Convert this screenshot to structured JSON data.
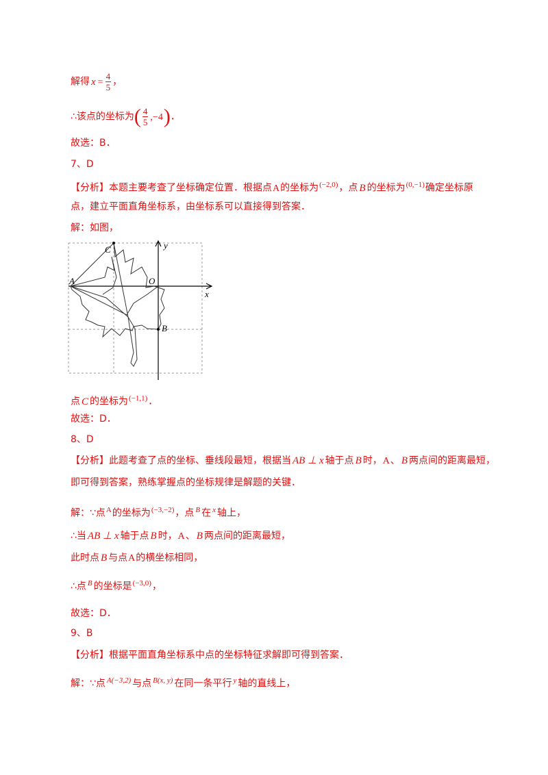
{
  "lines": [
    [
      "解得",
      "x",
      "=",
      "4",
      "5",
      "，"
    ],
    [
      "∴该点的坐标为",
      "(",
      "4",
      "5",
      ",−4",
      ")",
      "．"
    ],
    [
      "故选：B．"
    ],
    [
      "7、D"
    ],
    [
      "【分析】本题主要考查了坐标确定位置．根据点",
      "A",
      "的坐标为",
      "(−2,0)",
      "，点",
      "B",
      "的坐标为",
      "(0,−1)",
      "确定坐标原"
    ],
    [
      "点，建立平面直角坐标系，由坐标系可以直接得到答案．"
    ],
    [
      "解：如图，"
    ],
    [
      "点",
      "C",
      "的坐标为",
      "(−1,1)",
      "．"
    ],
    [
      "故选：D．"
    ],
    [
      "8、D"
    ],
    [
      "【分析】此题考查了点的坐标、垂线段最短，根据当",
      "AB ⊥ x",
      "轴于点",
      "B",
      "时，",
      "A",
      "、",
      "B",
      "两点间的距离最短，"
    ],
    [
      "即可得到答案，熟练掌握点的坐标规律是解题的关键．"
    ],
    [
      "解：∵点",
      "A",
      "的坐标为",
      "(−3,−2)",
      "，点",
      "B",
      "在",
      "x",
      "轴上，"
    ],
    [
      "∴当",
      "AB ⊥ x",
      "轴于点",
      "B",
      "时，",
      "A",
      "、",
      "B",
      "两点间的距离最短，"
    ],
    [
      "此时点",
      "B",
      "与点",
      "A",
      "的横坐标相同，"
    ],
    [
      "∴点",
      "B",
      "的坐标是",
      "(−3,0)",
      "，"
    ],
    [
      "故选：D．"
    ],
    [
      "9、B"
    ],
    [
      "【分析】根据平面直角坐标系中点的坐标特征求解即可得到答案．"
    ],
    [
      "解：∵点",
      "A(−3,2)",
      "与点",
      "B(x, y)",
      "在同一条平行",
      "y",
      "轴的直线上，"
    ]
  ],
  "figure": {
    "labels": [
      "C",
      "A",
      "O",
      "y",
      "x",
      "B"
    ]
  }
}
